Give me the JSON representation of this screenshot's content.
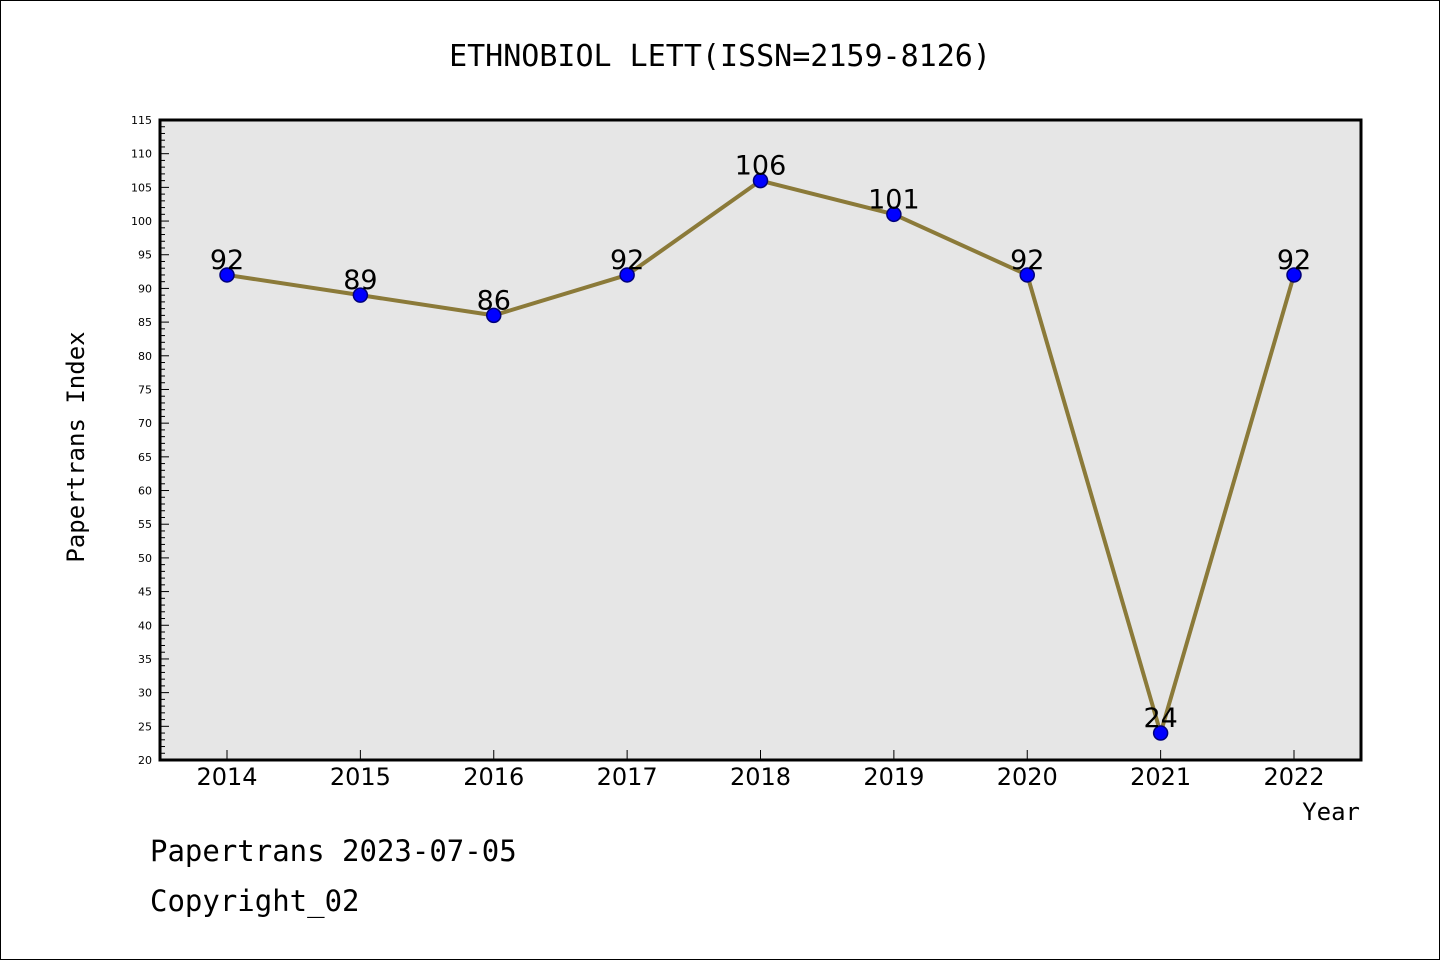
{
  "footer": {
    "stamp": "Papertrans 2023-07-05",
    "copyright": "Copyright_02"
  },
  "colors": {
    "plot_background": "#e6e6e6",
    "line": "#8b7a39",
    "marker_fill": "#0000ff",
    "marker_stroke": "#00007a",
    "frame": "#000000"
  },
  "chart_data": {
    "type": "line",
    "title": "ETHNOBIOL LETT(ISSN=2159-8126)",
    "xlabel": "Year",
    "ylabel": "Papertrans Index",
    "categories": [
      "2014",
      "2015",
      "2016",
      "2017",
      "2018",
      "2019",
      "2020",
      "2021",
      "2022"
    ],
    "series": [
      {
        "values": [
          92,
          89,
          86,
          92,
          106,
          101,
          92,
          24,
          92
        ]
      }
    ],
    "ylim": [
      20,
      115
    ],
    "yticks": [
      20,
      25,
      30,
      35,
      40,
      45,
      50,
      55,
      60,
      65,
      70,
      75,
      80,
      85,
      90,
      95,
      100,
      105,
      110,
      115
    ],
    "grid": false,
    "legend": "none",
    "data_labels": true,
    "markers": "circle"
  }
}
